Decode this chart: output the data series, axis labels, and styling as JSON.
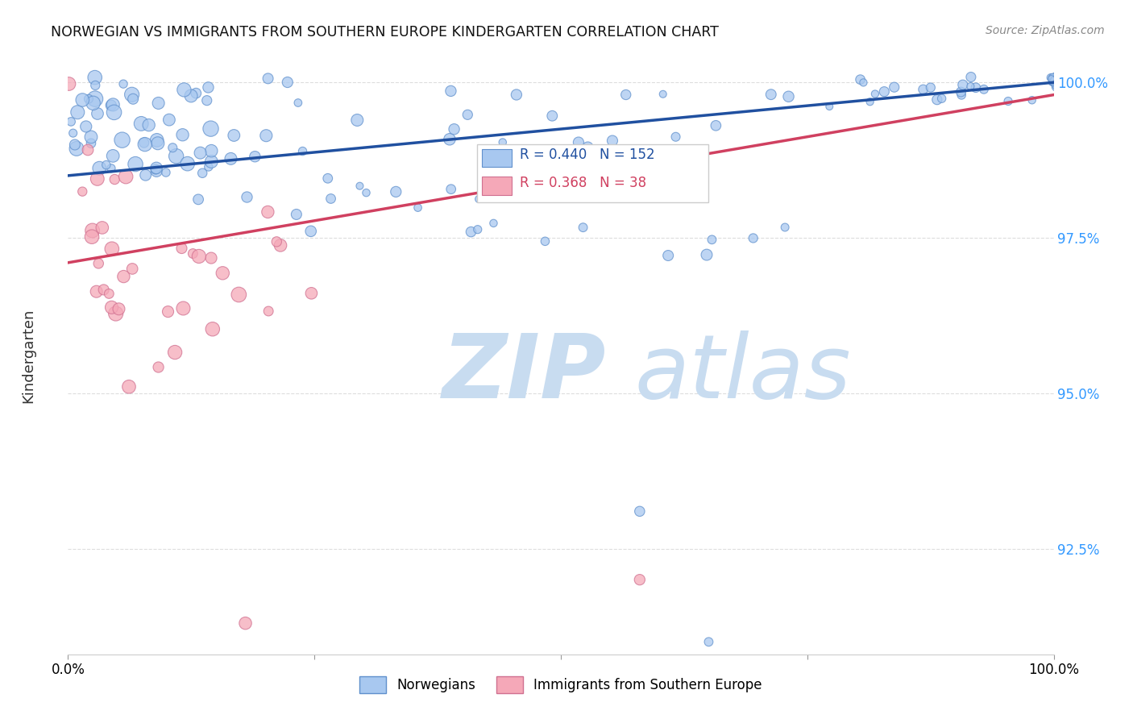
{
  "title": "NORWEGIAN VS IMMIGRANTS FROM SOUTHERN EUROPE KINDERGARTEN CORRELATION CHART",
  "source": "Source: ZipAtlas.com",
  "ylabel": "Kindergarten",
  "ytick_labels": [
    "92.5%",
    "95.0%",
    "97.5%",
    "100.0%"
  ],
  "ytick_values": [
    0.925,
    0.95,
    0.975,
    1.0
  ],
  "xlim": [
    0.0,
    1.0
  ],
  "ylim": [
    0.908,
    1.004
  ],
  "legend_blue_label": "Norwegians",
  "legend_pink_label": "Immigrants from Southern Europe",
  "r_blue": 0.44,
  "n_blue": 152,
  "r_pink": 0.368,
  "n_pink": 38,
  "blue_color": "#A8C8F0",
  "pink_color": "#F5A8B8",
  "blue_edge_color": "#6090CC",
  "pink_edge_color": "#D07090",
  "blue_line_color": "#2050A0",
  "pink_line_color": "#D04060",
  "background_color": "#FFFFFF",
  "watermark_zip": "ZIP",
  "watermark_atlas": "atlas",
  "watermark_zip_color": "#C8DCF0",
  "watermark_atlas_color": "#C8DCF0",
  "grid_color": "#DDDDDD",
  "blue_trend_x0": 0.0,
  "blue_trend_y0": 0.985,
  "blue_trend_x1": 1.0,
  "blue_trend_y1": 1.0,
  "pink_trend_x0": 0.0,
  "pink_trend_y0": 0.971,
  "pink_trend_x1": 1.0,
  "pink_trend_y1": 0.998
}
